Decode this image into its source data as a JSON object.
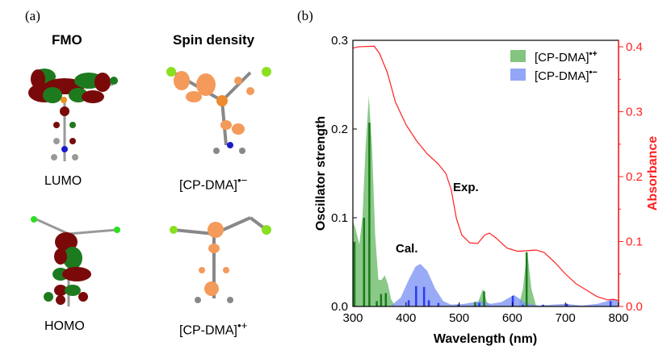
{
  "panel_a": {
    "label": "(a)",
    "col_fmo": "FMO",
    "col_spin": "Spin density",
    "captions": {
      "lumo": "LUMO",
      "homo": "HOMO",
      "anion": "[CP-DMA]",
      "anion_sup": "•−",
      "cation": "[CP-DMA]",
      "cation_sup": "•+"
    }
  },
  "chart_data": {
    "panel_label": "(b)",
    "type": "bar+area+line",
    "xlabel": "Wavelength (nm)",
    "ylabel": "Oscillator strength",
    "y2label": "Absorbance",
    "xlim": [
      300,
      800
    ],
    "ylim": [
      0,
      0.3
    ],
    "y2lim": [
      0,
      0.41
    ],
    "xticks": [
      "300",
      "400",
      "500",
      "600",
      "700",
      "800"
    ],
    "yticks": [
      "0.0",
      "0.1",
      "0.2",
      "0.3"
    ],
    "y2ticks": [
      "0.0",
      "0.1",
      "0.2",
      "0.3",
      "0.4"
    ],
    "annotations": {
      "cal": "Cal.",
      "exp": "Exp."
    },
    "legend_position": "top-right",
    "colors": {
      "cation_fill": "#6dbb6a",
      "cation_stick": "#1a7a1a",
      "anion_fill": "#7f95f5",
      "anion_stick": "#2a3cf0",
      "exp": "#ff2020"
    },
    "series": [
      {
        "name": "[CP-DMA]",
        "sup": "•+",
        "key": "cation",
        "sticks": [
          [
            303,
            0.073
          ],
          [
            321,
            0.1
          ],
          [
            331,
            0.207
          ],
          [
            345,
            0.006
          ],
          [
            353,
            0.014
          ],
          [
            362,
            0.015
          ],
          [
            530,
            0.005
          ],
          [
            547,
            0.017
          ],
          [
            627,
            0.061
          ]
        ],
        "envelope": [
          [
            300,
            0.095
          ],
          [
            304,
            0.09
          ],
          [
            312,
            0.07
          ],
          [
            318,
            0.1
          ],
          [
            324,
            0.18
          ],
          [
            330,
            0.237
          ],
          [
            336,
            0.18
          ],
          [
            342,
            0.08
          ],
          [
            348,
            0.03
          ],
          [
            354,
            0.03
          ],
          [
            360,
            0.035
          ],
          [
            366,
            0.025
          ],
          [
            372,
            0.008
          ],
          [
            380,
            0
          ],
          [
            522,
            0
          ],
          [
            535,
            0.004
          ],
          [
            545,
            0.02
          ],
          [
            552,
            0.005
          ],
          [
            560,
            0
          ],
          [
            612,
            0
          ],
          [
            620,
            0.02
          ],
          [
            628,
            0.063
          ],
          [
            636,
            0.02
          ],
          [
            645,
            0
          ],
          [
            800,
            0
          ]
        ]
      },
      {
        "name": "[CP-DMA]",
        "sup": "•−",
        "key": "anion",
        "sticks": [
          [
            405,
            0.007
          ],
          [
            419,
            0.023
          ],
          [
            434,
            0.022
          ],
          [
            443,
            0.007
          ],
          [
            461,
            0.004
          ],
          [
            498,
            0.002
          ],
          [
            538,
            0.004
          ],
          [
            601,
            0.012
          ],
          [
            620,
            0.002
          ],
          [
            658,
            0.002
          ],
          [
            703,
            0.003
          ],
          [
            785,
            0.006
          ]
        ],
        "envelope": [
          [
            370,
            0
          ],
          [
            390,
            0.01
          ],
          [
            405,
            0.03
          ],
          [
            418,
            0.045
          ],
          [
            427,
            0.048
          ],
          [
            440,
            0.04
          ],
          [
            455,
            0.02
          ],
          [
            470,
            0.006
          ],
          [
            485,
            0.002
          ],
          [
            510,
            0.003
          ],
          [
            540,
            0.006
          ],
          [
            560,
            0.003
          ],
          [
            580,
            0.005
          ],
          [
            603,
            0.013
          ],
          [
            625,
            0.004
          ],
          [
            650,
            0.001
          ],
          [
            700,
            0.003
          ],
          [
            730,
            0.001
          ],
          [
            760,
            0.003
          ],
          [
            790,
            0.008
          ],
          [
            800,
            0.006
          ]
        ]
      },
      {
        "name": "Exp.",
        "key": "exp",
        "axis": "right",
        "points": [
          [
            300,
            0.398
          ],
          [
            310,
            0.4
          ],
          [
            340,
            0.401
          ],
          [
            350,
            0.39
          ],
          [
            365,
            0.36
          ],
          [
            380,
            0.315
          ],
          [
            400,
            0.28
          ],
          [
            420,
            0.255
          ],
          [
            440,
            0.235
          ],
          [
            460,
            0.22
          ],
          [
            475,
            0.205
          ],
          [
            485,
            0.18
          ],
          [
            495,
            0.135
          ],
          [
            505,
            0.11
          ],
          [
            520,
            0.098
          ],
          [
            535,
            0.097
          ],
          [
            548,
            0.11
          ],
          [
            557,
            0.113
          ],
          [
            570,
            0.105
          ],
          [
            590,
            0.09
          ],
          [
            610,
            0.085
          ],
          [
            630,
            0.086
          ],
          [
            645,
            0.087
          ],
          [
            660,
            0.083
          ],
          [
            680,
            0.068
          ],
          [
            700,
            0.05
          ],
          [
            720,
            0.035
          ],
          [
            740,
            0.025
          ],
          [
            760,
            0.015
          ],
          [
            780,
            0.01
          ],
          [
            790,
            0.011
          ],
          [
            800,
            0.009
          ]
        ]
      }
    ]
  }
}
